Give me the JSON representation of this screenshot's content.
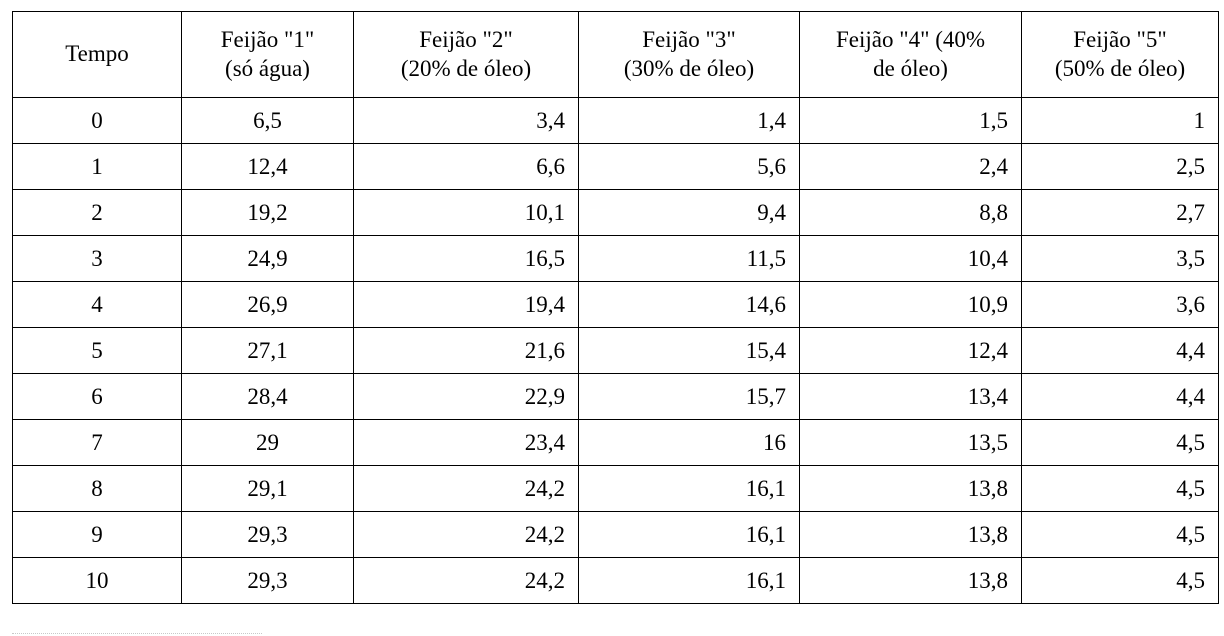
{
  "table": {
    "headers": [
      {
        "line1": "Tempo",
        "line2": ""
      },
      {
        "line1": "Feijão \"1\"",
        "line2": "(só água)"
      },
      {
        "line1": "Feijão \"2\"",
        "line2": "(20% de óleo)"
      },
      {
        "line1": "Feijão \"3\"",
        "line2": "(30% de óleo)"
      },
      {
        "line1": "Feijão \"4\" (40%",
        "line2": "de óleo)"
      },
      {
        "line1": "Feijão \"5\"",
        "line2": "(50% de óleo)"
      }
    ],
    "rows": [
      [
        "0",
        "6,5",
        "3,4",
        "1,4",
        "1,5",
        "1"
      ],
      [
        "1",
        "12,4",
        "6,6",
        "5,6",
        "2,4",
        "2,5"
      ],
      [
        "2",
        "19,2",
        "10,1",
        "9,4",
        "8,8",
        "2,7"
      ],
      [
        "3",
        "24,9",
        "16,5",
        "11,5",
        "10,4",
        "3,5"
      ],
      [
        "4",
        "26,9",
        "19,4",
        "14,6",
        "10,9",
        "3,6"
      ],
      [
        "5",
        "27,1",
        "21,6",
        "15,4",
        "12,4",
        "4,4"
      ],
      [
        "6",
        "28,4",
        "22,9",
        "15,7",
        "13,4",
        "4,4"
      ],
      [
        "7",
        "29",
        "23,4",
        "16",
        "13,5",
        "4,5"
      ],
      [
        "8",
        "29,1",
        "24,2",
        "16,1",
        "13,8",
        "4,5"
      ],
      [
        "9",
        "29,3",
        "24,2",
        "16,1",
        "13,8",
        "4,5"
      ],
      [
        "10",
        "29,3",
        "24,2",
        "16,1",
        "13,8",
        "4,5"
      ]
    ]
  }
}
